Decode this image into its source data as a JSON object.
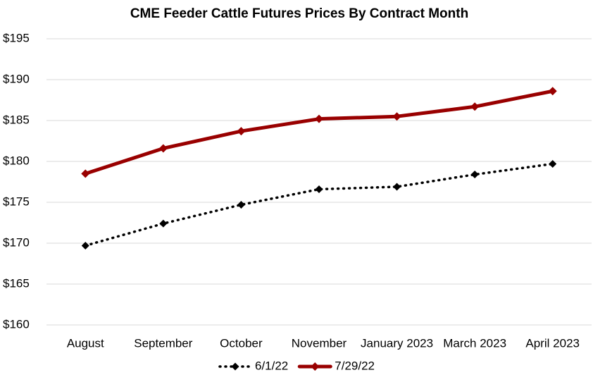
{
  "chart_data": {
    "type": "line",
    "title": "CME Feeder Cattle Futures Prices By Contract Month",
    "categories": [
      "August",
      "September",
      "October",
      "November",
      "January 2023",
      "March 2023",
      "April 2023"
    ],
    "series": [
      {
        "name": "6/1/22",
        "color": "#000000",
        "line_style": "dotted",
        "marker": "diamond",
        "values": [
          169.7,
          172.4,
          174.7,
          176.6,
          176.9,
          178.4,
          179.7
        ]
      },
      {
        "name": "7/29/22",
        "color": "#990000",
        "line_style": "solid",
        "marker": "diamond",
        "values": [
          178.5,
          181.6,
          183.7,
          185.2,
          185.5,
          186.7,
          188.6
        ]
      }
    ],
    "ylim": [
      160,
      195
    ],
    "yticks": [
      {
        "value": 160,
        "label": "$160"
      },
      {
        "value": 165,
        "label": "$165"
      },
      {
        "value": 170,
        "label": "$170"
      },
      {
        "value": 175,
        "label": "$175"
      },
      {
        "value": 180,
        "label": "$180"
      },
      {
        "value": 185,
        "label": "$185"
      },
      {
        "value": 190,
        "label": "$190"
      },
      {
        "value": 195,
        "label": "$195"
      }
    ],
    "grid": true,
    "legend": "bottom"
  }
}
